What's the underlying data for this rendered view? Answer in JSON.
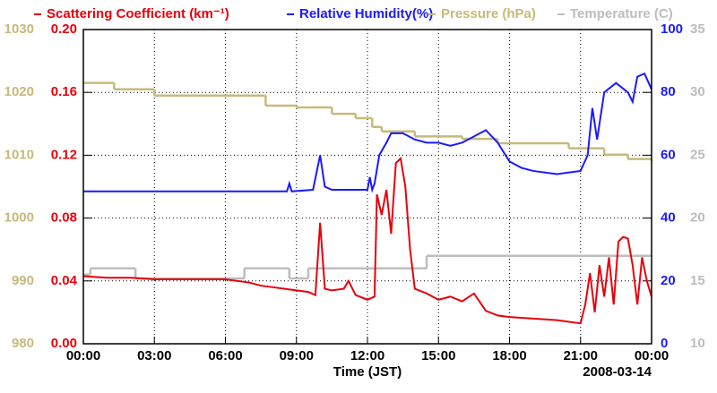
{
  "chart_data": {
    "type": "line",
    "xlabel": "Time (JST)",
    "date_label": "2008-03-14",
    "xlim": [
      0,
      24
    ],
    "xticks": [
      {
        "value": 0,
        "label": "00:00"
      },
      {
        "value": 3,
        "label": "03:00"
      },
      {
        "value": 6,
        "label": "06:00"
      },
      {
        "value": 9,
        "label": "09:00"
      },
      {
        "value": 12,
        "label": "12:00"
      },
      {
        "value": 15,
        "label": "15:00"
      },
      {
        "value": 18,
        "label": "18:00"
      },
      {
        "value": 21,
        "label": "21:00"
      },
      {
        "value": 24,
        "label": "00:00"
      }
    ],
    "ylim": [
      0,
      0.2
    ],
    "yticks": [
      {
        "value": 0,
        "label": "0.00"
      },
      {
        "value": 0.04,
        "label": "0.04"
      },
      {
        "value": 0.08,
        "label": "0.08"
      },
      {
        "value": 0.12,
        "label": "0.12"
      },
      {
        "value": 0.16,
        "label": "0.16"
      },
      {
        "value": 0.2,
        "label": "0.20"
      }
    ],
    "y2lim": [
      0,
      100
    ],
    "y2ticks": [
      0,
      20,
      40,
      60,
      80,
      100
    ],
    "y3lim": [
      980,
      1030
    ],
    "y3ticks": [
      980,
      990,
      1000,
      1010,
      1020,
      1030
    ],
    "y4lim": [
      10,
      35
    ],
    "y4ticks": [
      10,
      15,
      20,
      25,
      30,
      35
    ],
    "grid": true,
    "series": [
      {
        "name": "Scattering Coefficient (km⁻¹)",
        "color": "#e8000b",
        "axis": "y",
        "drawstyle": "line",
        "x": [
          0,
          1,
          2,
          3,
          4,
          5,
          6,
          7,
          7.5,
          8,
          8.5,
          9,
          9.5,
          9.8,
          10,
          10.2,
          10.5,
          11,
          11.2,
          11.5,
          12,
          12.3,
          12.4,
          12.6,
          12.8,
          13.0,
          13.2,
          13.4,
          13.6,
          13.8,
          14,
          14.5,
          15,
          15.5,
          16,
          16.5,
          17,
          17.5,
          18,
          19,
          20,
          21,
          21.2,
          21.4,
          21.6,
          21.8,
          22,
          22.2,
          22.4,
          22.6,
          22.8,
          23,
          23.2,
          23.4,
          23.6,
          23.8,
          24
        ],
        "values": [
          0.043,
          0.042,
          0.042,
          0.041,
          0.041,
          0.041,
          0.041,
          0.039,
          0.037,
          0.036,
          0.035,
          0.034,
          0.033,
          0.031,
          0.077,
          0.035,
          0.034,
          0.035,
          0.04,
          0.031,
          0.028,
          0.03,
          0.095,
          0.082,
          0.098,
          0.07,
          0.115,
          0.118,
          0.1,
          0.06,
          0.035,
          0.032,
          0.028,
          0.03,
          0.027,
          0.032,
          0.021,
          0.018,
          0.017,
          0.016,
          0.015,
          0.013,
          0.025,
          0.045,
          0.02,
          0.05,
          0.03,
          0.055,
          0.025,
          0.065,
          0.068,
          0.067,
          0.05,
          0.025,
          0.055,
          0.04,
          0.03
        ]
      },
      {
        "name": "Relative Humidity(%)",
        "color": "#1a1aff",
        "axis": "y2",
        "drawstyle": "line",
        "x": [
          0,
          4,
          8.6,
          8.7,
          8.8,
          9.7,
          10,
          10.2,
          10.5,
          12.0,
          12.1,
          12.2,
          12.3,
          12.5,
          12.8,
          13,
          13.5,
          14,
          14.5,
          15,
          15.5,
          16,
          16.5,
          17,
          17.5,
          18,
          18.5,
          19,
          20,
          21,
          21.3,
          21.5,
          21.7,
          22,
          22.5,
          23,
          23.2,
          23.4,
          23.7,
          24
        ],
        "values": [
          48.5,
          48.5,
          48.5,
          51,
          48.5,
          49,
          60,
          50,
          49,
          49,
          53,
          49,
          51,
          60,
          64,
          67,
          67,
          65,
          64,
          64,
          63,
          64,
          66,
          68,
          64,
          58,
          56,
          55,
          54,
          55,
          60,
          75,
          65,
          80,
          83,
          80,
          77,
          85,
          86,
          81
        ]
      },
      {
        "name": "Pressure (hPa)",
        "color": "#c8b97a",
        "axis": "y3",
        "drawstyle": "steps",
        "x": [
          0,
          1.3,
          3,
          7.7,
          9,
          10.5,
          11.5,
          12.2,
          12.6,
          14,
          16,
          17.5,
          20.5,
          22,
          23,
          24
        ],
        "values": [
          1021.5,
          1020.5,
          1019.5,
          1017.9,
          1017.6,
          1016.6,
          1015.9,
          1014.5,
          1013.8,
          1013.0,
          1012.6,
          1011.9,
          1011.1,
          1010.1,
          1009.4,
          1009.1
        ]
      },
      {
        "name": "Temperature (C)",
        "color": "#bdbdbd",
        "axis": "y4",
        "drawstyle": "steps",
        "x": [
          0,
          0.3,
          2.2,
          6.8,
          8.7,
          9.5,
          14.5,
          24
        ],
        "values": [
          15.5,
          16,
          15.2,
          16,
          15.2,
          16,
          17,
          17
        ]
      }
    ]
  }
}
